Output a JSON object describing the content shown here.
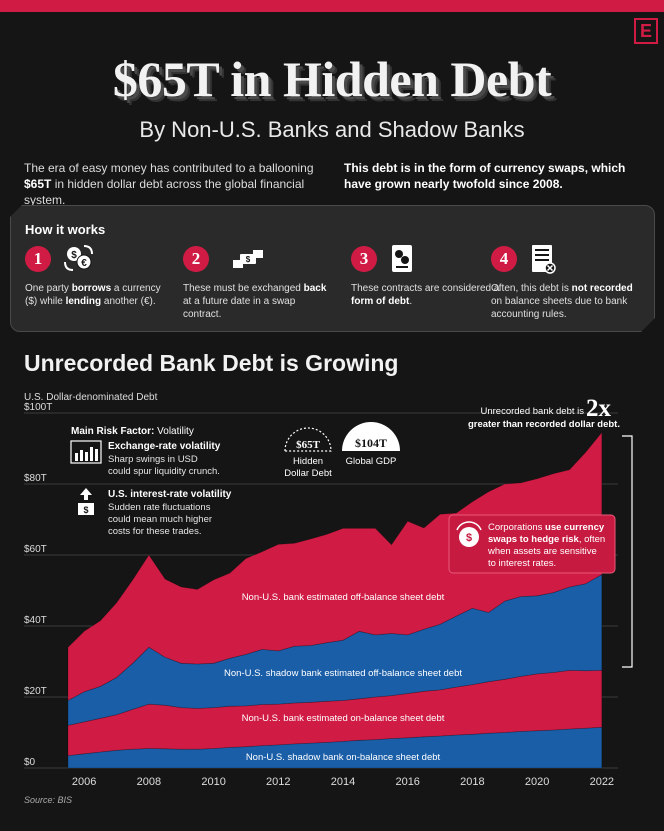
{
  "brand_letter": "E",
  "title": "$65T in Hidden Debt",
  "subtitle": "By Non-U.S. Banks and Shadow Banks",
  "intro": {
    "left_pre": "The era of easy money has contributed to a ballooning ",
    "left_bold": "$65T",
    "left_post": " in hidden dollar debt across the global financial system.",
    "right": "This debt is in the form of currency swaps, which have grown nearly twofold since 2008."
  },
  "how_it_works": {
    "title": "How it works",
    "steps": [
      {
        "num": "1",
        "icon": "currency-exchange-icon",
        "a": "One party ",
        "b": "borrows",
        "c": " a currency ($) while ",
        "d": "lending",
        "e": " another (€)."
      },
      {
        "num": "2",
        "icon": "handshake-exchange-icon",
        "a": "These must be exchanged ",
        "b": "back",
        "c": " at a future date in a swap contract.",
        "d": "",
        "e": ""
      },
      {
        "num": "3",
        "icon": "contract-document-icon",
        "a": "These contracts are considered a ",
        "b": "form of debt",
        "c": ".",
        "d": "",
        "e": ""
      },
      {
        "num": "4",
        "icon": "balance-sheet-icon",
        "a": "Often, this debt is ",
        "b": "not recorded",
        "c": " on balance sheets due to bank accounting rules.",
        "d": "",
        "e": ""
      }
    ]
  },
  "chart_section_title": "Unrecorded Bank Debt is Growing",
  "source": "Source: BIS",
  "annotations": {
    "risk_title_bold": "Main Risk Factor:",
    "risk_title_rest": " Volatility",
    "risk1_title": "Exchange-rate volatility",
    "risk1_l1": "Sharp swings in USD",
    "risk1_l2": "could spur liquidity crunch.",
    "risk2_title": "U.S. interest-rate volatility",
    "risk2_l1": "Sudden rate fluctuations",
    "risk2_l2": "could mean much higher",
    "risk2_l3": "costs for these trades.",
    "badge1_value": "$65T",
    "badge1_l1": "Hidden",
    "badge1_l2": "Dollar Debt",
    "badge2_value": "$104T",
    "badge2_l1": "Global GDP",
    "twox_l1": "Unrecorded bank debt is",
    "twox_big": "2x",
    "twox_l2": "greater than recorded dollar debt.",
    "hedge_l1a": "Corporations ",
    "hedge_l1b": "use currency",
    "hedge_l2": "swaps to hedge risk",
    "hedge_l2b": ", often",
    "hedge_l3": "when assets are sensitive",
    "hedge_l4": "to interest rates."
  },
  "colors": {
    "accent": "#d01c45",
    "series1": "#1a5ea8",
    "series2": "#d01c45",
    "series3": "#1a5ea8",
    "series4": "#d01c45",
    "background": "#151515"
  },
  "chart_data": {
    "type": "area",
    "stacked": true,
    "ylabel": "U.S. Dollar-denominated Debt",
    "ylim": [
      0,
      100
    ],
    "yticks": [
      "$0",
      "$20T",
      "$40T",
      "$60T",
      "$80T",
      "$100T"
    ],
    "ytick_values": [
      0,
      20,
      40,
      60,
      80,
      100
    ],
    "xticks": [
      "2006",
      "2008",
      "2010",
      "2012",
      "2014",
      "2016",
      "2018",
      "2020",
      "2022"
    ],
    "xlim": [
      2005.5,
      2022.5
    ],
    "x": [
      2005.5,
      2006,
      2006.5,
      2007,
      2007.5,
      2008,
      2008.5,
      2009,
      2009.5,
      2010,
      2010.5,
      2011,
      2011.5,
      2012,
      2012.5,
      2013,
      2013.5,
      2014,
      2014.5,
      2015,
      2015.5,
      2016,
      2016.5,
      2017,
      2017.5,
      2018,
      2018.5,
      2019,
      2019.5,
      2020,
      2020.5,
      2021,
      2021.5,
      2022
    ],
    "series": [
      {
        "name": "Non-U.S. shadow bank on-balance sheet debt",
        "values": [
          3.5,
          4,
          4.5,
          5,
          5.3,
          5.5,
          5.4,
          5.3,
          5.3,
          5.5,
          5.8,
          6,
          6.3,
          6.5,
          6.8,
          7,
          7.2,
          7.5,
          7.8,
          8,
          8.3,
          8.5,
          8.8,
          9,
          9.3,
          9.5,
          9.8,
          10,
          10.3,
          10.5,
          10.7,
          11,
          11.2,
          11.5
        ]
      },
      {
        "name": "Non-U.S. bank estimated on-balance sheet debt",
        "values": [
          8.5,
          9,
          9.5,
          10,
          11.2,
          12.5,
          12.3,
          11.7,
          11.5,
          11.5,
          11.6,
          11.5,
          11.6,
          11.5,
          11.5,
          11.5,
          11.6,
          11.5,
          11.7,
          12,
          12.1,
          12.5,
          12.8,
          13,
          13.5,
          14,
          14.5,
          15,
          15.5,
          16,
          16.2,
          16.5,
          16.2,
          16
        ]
      },
      {
        "name": "Non-U.S. shadow bank estimated off-balance sheet debt",
        "values": [
          7,
          8.5,
          9,
          10.5,
          13,
          16,
          13.5,
          12.5,
          12.5,
          12.5,
          13.5,
          14.5,
          15.5,
          15,
          16,
          16,
          16.5,
          17,
          19,
          17.5,
          17.5,
          16.5,
          17.5,
          18.5,
          20,
          21.5,
          19.5,
          22,
          22.5,
          22,
          22.5,
          23.5,
          24.5,
          27
        ]
      },
      {
        "name": "Non-U.S. bank estimated off-balance sheet debt",
        "values": [
          15,
          17,
          18.5,
          21,
          23.5,
          26,
          22,
          21.5,
          21,
          23.5,
          24,
          27,
          27.5,
          30,
          29,
          30,
          30.5,
          31.5,
          29,
          30,
          25,
          32,
          28.5,
          31,
          29,
          30,
          34,
          33,
          32,
          33,
          33.5,
          33,
          37,
          40
        ]
      }
    ],
    "title": "$65T in Hidden Debt"
  }
}
